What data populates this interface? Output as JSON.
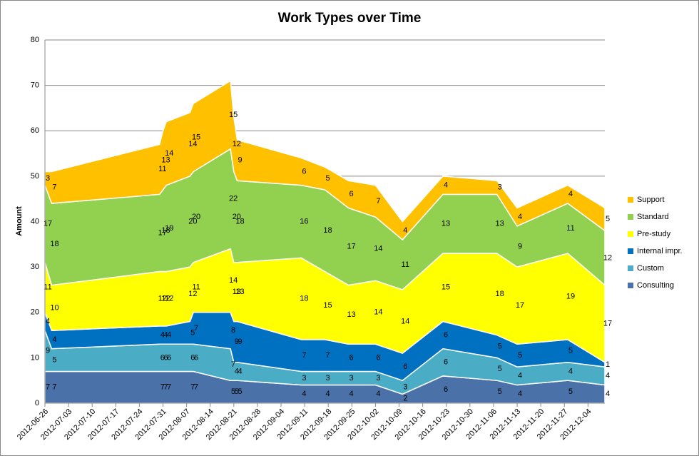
{
  "chart_data": {
    "type": "stacked_area",
    "title": "Work Types over Time",
    "y_label": "Amount",
    "x": [
      "2012-06-26",
      "2012-06-28",
      "2012-07-30",
      "2012-07-31",
      "2012-08-01",
      "2012-08-08",
      "2012-08-09",
      "2012-08-20",
      "2012-08-21",
      "2012-08-22",
      "2012-09-10",
      "2012-09-17",
      "2012-09-24",
      "2012-10-02",
      "2012-10-10",
      "2012-10-22",
      "2012-11-07",
      "2012-11-13",
      "2012-11-28",
      "2012-12-09"
    ],
    "series": [
      {
        "name": "Consulting",
        "color": "#4a72a8",
        "values": [
          7,
          7,
          7,
          7,
          7,
          7,
          7,
          5,
          5,
          5,
          4,
          4,
          4,
          4,
          2,
          6,
          5,
          4,
          5,
          4
        ]
      },
      {
        "name": "Custom",
        "color": "#4bacc6",
        "values": [
          9,
          5,
          6,
          6,
          6,
          6,
          6,
          7,
          4,
          4,
          3,
          3,
          3,
          3,
          3,
          6,
          5,
          4,
          4,
          4
        ]
      },
      {
        "name": "Internal impr.",
        "color": "#0070c0",
        "values": [
          4,
          4,
          4,
          4,
          4,
          5,
          7,
          8,
          9,
          9,
          7,
          7,
          6,
          6,
          6,
          6,
          5,
          5,
          5,
          1
        ]
      },
      {
        "name": "Pre-study",
        "color": "#ffff00",
        "values": [
          11,
          10,
          12,
          12,
          12,
          12,
          11,
          14,
          13,
          13,
          18,
          15,
          13,
          14,
          14,
          15,
          18,
          17,
          19,
          17
        ]
      },
      {
        "name": "Standard",
        "color": "#92d050",
        "values": [
          17,
          18,
          17,
          18,
          19,
          20,
          20,
          22,
          20,
          18,
          16,
          18,
          17,
          14,
          11,
          13,
          13,
          9,
          11,
          12
        ]
      },
      {
        "name": "Support",
        "color": "#ffc000",
        "values": [
          3,
          7,
          11,
          13,
          14,
          14,
          15,
          15,
          12,
          9,
          6,
          5,
          6,
          7,
          4,
          4,
          3,
          4,
          4,
          5
        ]
      }
    ],
    "xlim": [
      "2012-06-26",
      "2012-12-09"
    ],
    "xticks": [
      "2012-06-26",
      "2012-07-03",
      "2012-07-10",
      "2012-07-17",
      "2012-07-24",
      "2012-07-31",
      "2012-08-07",
      "2012-08-14",
      "2012-08-21",
      "2012-08-28",
      "2012-09-04",
      "2012-09-11",
      "2012-09-18",
      "2012-09-25",
      "2012-10-02",
      "2012-10-09",
      "2012-10-16",
      "2012-10-23",
      "2012-10-30",
      "2012-11-06",
      "2012-11-13",
      "2012-11-20",
      "2012-11-27",
      "2012-12-04"
    ],
    "ylim": [
      0,
      80
    ],
    "yticks": [
      0,
      10,
      20,
      30,
      40,
      50,
      60,
      70,
      80
    ],
    "grid": true,
    "legend": "right"
  }
}
